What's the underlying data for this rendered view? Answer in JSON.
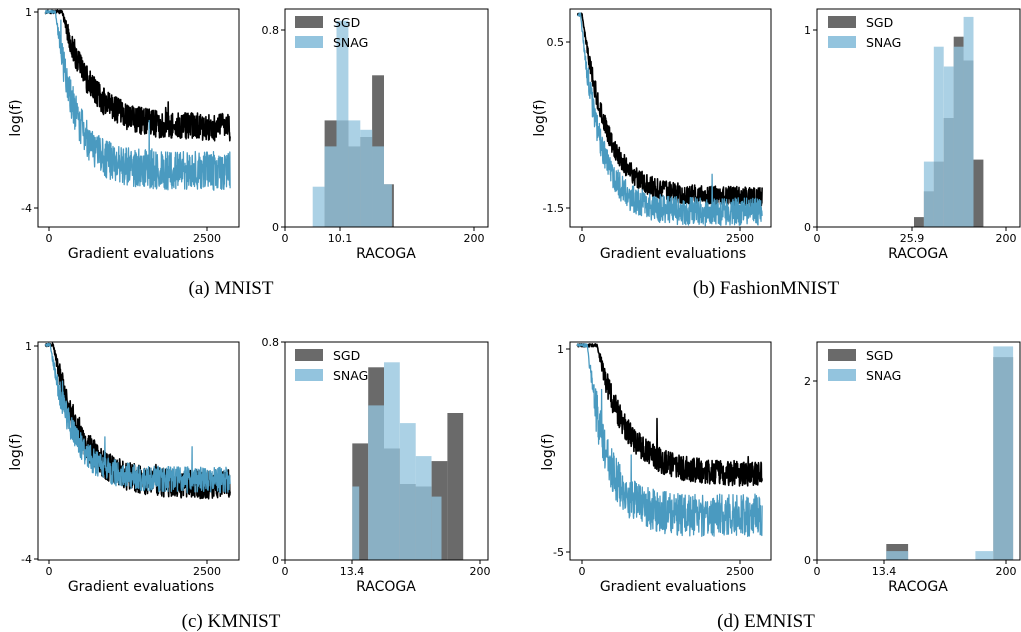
{
  "figure": {
    "panels": [
      {
        "caption": "(a) MNIST",
        "loss": {
          "x_tick_labels": [
            "0",
            "2500"
          ],
          "y_tick_labels": [
            "1",
            "-4"
          ],
          "xlabel": "Gradient evaluations",
          "ylabel": "log(f)"
        },
        "hist": {
          "x_tick_labels": [
            "0",
            "10.1",
            "200"
          ],
          "y_tick_labels": [
            "0",
            "0.8"
          ],
          "xlabel": "RACOGA",
          "legend": [
            "SGD",
            "SNAG"
          ]
        }
      },
      {
        "caption": "(b) FashionMNIST",
        "loss": {
          "x_tick_labels": [
            "0",
            "2500"
          ],
          "y_tick_labels": [
            "0.5",
            "-1.5"
          ],
          "xlabel": "Gradient evaluations",
          "ylabel": "log(f)"
        },
        "hist": {
          "x_tick_labels": [
            "0",
            "25.9",
            "200"
          ],
          "y_tick_labels": [
            "0",
            "1"
          ],
          "xlabel": "RACOGA",
          "legend": [
            "SGD",
            "SNAG"
          ]
        }
      },
      {
        "caption": "(c) KMNIST",
        "loss": {
          "x_tick_labels": [
            "0",
            "2500"
          ],
          "y_tick_labels": [
            "1",
            "-4"
          ],
          "xlabel": "Gradient evaluations",
          "ylabel": "log(f)"
        },
        "hist": {
          "x_tick_labels": [
            "0",
            "13.4",
            "200"
          ],
          "y_tick_labels": [
            "0",
            "0.8"
          ],
          "xlabel": "RACOGA",
          "legend": [
            "SGD",
            "SNAG"
          ]
        }
      },
      {
        "caption": "(d) EMNIST",
        "loss": {
          "x_tick_labels": [
            "0",
            "2500"
          ],
          "y_tick_labels": [
            "1",
            "-5"
          ],
          "xlabel": "Gradient evaluations",
          "ylabel": "log(f)"
        },
        "hist": {
          "x_tick_labels": [
            "0",
            "13.4",
            "200"
          ],
          "y_tick_labels": [
            "0",
            "2"
          ],
          "xlabel": "RACOGA",
          "legend": [
            "SGD",
            "SNAG"
          ]
        }
      }
    ]
  },
  "colors": {
    "sgd_line": "#000000",
    "snag_line": "#4a9ac0",
    "sgd_hist": "#6a6a6a",
    "snag_hist": "#93c4de"
  },
  "chart_data": [
    {
      "id": "a-loss",
      "type": "line",
      "xlabel": "Gradient evaluations",
      "ylabel": "log(f)",
      "xlim": [
        -100,
        2600
      ],
      "ylim": [
        -4.05,
        1.0
      ],
      "series": [
        {
          "name": "SGD",
          "start": 0.97,
          "plateau_end": 220,
          "level": -1.75,
          "tau": 380,
          "noise": 0.32,
          "spike_prob": 0.012
        },
        {
          "name": "SNAG",
          "start": 0.97,
          "plateau_end": 130,
          "level": -2.75,
          "tau": 270,
          "noise": 0.45,
          "spike_prob": 0.012
        }
      ]
    },
    {
      "id": "a-hist",
      "type": "bar",
      "xlabel": "RACOGA",
      "xlim": [
        0,
        205
      ],
      "ylim": [
        0,
        0.92
      ],
      "legend_position": "top-left",
      "series": [
        {
          "name": "SGD",
          "bins": [
            [
              40,
              52,
              0.45
            ],
            [
              52,
              64,
              0.45
            ],
            [
              64,
              76,
              0.34
            ],
            [
              76,
              88,
              0.38
            ],
            [
              88,
              100,
              0.64
            ],
            [
              100,
              110,
              0.18
            ]
          ]
        },
        {
          "name": "SNAG",
          "bins": [
            [
              28,
              40,
              0.17
            ],
            [
              40,
              52,
              0.34
            ],
            [
              52,
              64,
              0.87
            ],
            [
              64,
              76,
              0.45
            ],
            [
              76,
              88,
              0.41
            ],
            [
              88,
              100,
              0.34
            ],
            [
              100,
              108,
              0.18
            ]
          ]
        }
      ]
    },
    {
      "id": "b-loss",
      "type": "line",
      "xlabel": "Gradient evaluations",
      "ylabel": "log(f)",
      "xlim": [
        -100,
        2600
      ],
      "ylim": [
        -1.55,
        0.62
      ],
      "series": [
        {
          "name": "SGD",
          "start": 0.58,
          "plateau_end": 60,
          "level": -1.25,
          "tau": 330,
          "noise": 0.1,
          "spike_prob": 0.004
        },
        {
          "name": "SNAG",
          "start": 0.58,
          "plateau_end": 40,
          "level": -1.4,
          "tau": 260,
          "noise": 0.14,
          "spike_prob": 0.004
        }
      ]
    },
    {
      "id": "b-hist",
      "type": "bar",
      "xlabel": "RACOGA",
      "xlim": [
        0,
        205
      ],
      "ylim": [
        0,
        1.1
      ],
      "legend_position": "top-left",
      "series": [
        {
          "name": "SGD",
          "bins": [
            [
              98,
              108,
              0.05
            ],
            [
              108,
              118,
              0.18
            ],
            [
              118,
              128,
              0.33
            ],
            [
              128,
              138,
              0.55
            ],
            [
              138,
              148,
              0.96
            ],
            [
              148,
              158,
              0.84
            ],
            [
              158,
              168,
              0.34
            ]
          ]
        },
        {
          "name": "SNAG",
          "bins": [
            [
              108,
              118,
              0.33
            ],
            [
              118,
              128,
              0.91
            ],
            [
              128,
              138,
              0.81
            ],
            [
              138,
              148,
              0.91
            ],
            [
              148,
              158,
              1.06
            ]
          ]
        }
      ]
    },
    {
      "id": "c-loss",
      "type": "line",
      "xlabel": "Gradient evaluations",
      "ylabel": "log(f)",
      "xlim": [
        -100,
        2600
      ],
      "ylim": [
        -4.05,
        1.0
      ],
      "series": [
        {
          "name": "SGD",
          "start": 0.97,
          "plateau_end": 100,
          "level": -2.3,
          "tau": 360,
          "noise": 0.34,
          "spike_prob": 0.008
        },
        {
          "name": "SNAG",
          "start": 0.97,
          "plateau_end": 60,
          "level": -2.2,
          "tau": 300,
          "noise": 0.3,
          "spike_prob": 0.008
        }
      ]
    },
    {
      "id": "c-hist",
      "type": "bar",
      "xlabel": "RACOGA",
      "xlim": [
        0,
        205
      ],
      "ylim": [
        0,
        0.86
      ],
      "legend_position": "top-left",
      "series": [
        {
          "name": "SGD",
          "bins": [
            [
              68,
              84,
              0.46
            ],
            [
              84,
              100,
              0.76
            ],
            [
              100,
              116,
              0.44
            ],
            [
              116,
              132,
              0.3
            ],
            [
              132,
              148,
              0.29
            ],
            [
              148,
              164,
              0.39
            ],
            [
              164,
              180,
              0.58
            ]
          ]
        },
        {
          "name": "SNAG",
          "bins": [
            [
              68,
              75,
              0.29
            ],
            [
              84,
              100,
              0.61
            ],
            [
              100,
              116,
              0.78
            ],
            [
              116,
              132,
              0.54
            ],
            [
              132,
              148,
              0.41
            ],
            [
              148,
              158,
              0.25
            ]
          ]
        }
      ]
    },
    {
      "id": "d-loss",
      "type": "line",
      "xlabel": "Gradient evaluations",
      "ylabel": "log(f)",
      "xlim": [
        -100,
        2600
      ],
      "ylim": [
        -5.05,
        1.05
      ],
      "series": [
        {
          "name": "SGD",
          "start": 1.0,
          "plateau_end": 260,
          "level": -2.65,
          "tau": 380,
          "noise": 0.35,
          "spike_prob": 0.008
        },
        {
          "name": "SNAG",
          "start": 1.0,
          "plateau_end": 130,
          "level": -3.8,
          "tau": 250,
          "noise": 0.6,
          "spike_prob": 0.008
        }
      ]
    },
    {
      "id": "d-hist",
      "type": "bar",
      "xlabel": "RACOGA",
      "xlim": [
        0,
        205
      ],
      "ylim": [
        0,
        2.45
      ],
      "legend_position": "top-left",
      "series": [
        {
          "name": "SGD",
          "bins": [
            [
              70,
              92,
              0.18
            ],
            [
              178,
              198,
              2.28
            ]
          ]
        },
        {
          "name": "SNAG",
          "bins": [
            [
              70,
              92,
              0.1
            ],
            [
              160,
              178,
              0.1
            ],
            [
              178,
              198,
              2.4
            ]
          ]
        }
      ]
    }
  ]
}
